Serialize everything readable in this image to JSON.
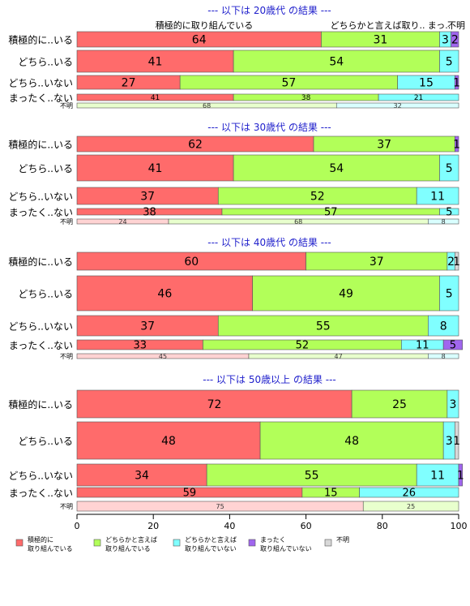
{
  "chart_data": {
    "type": "bar",
    "orientation": "horizontal",
    "stacked": true,
    "xlim": [
      0,
      100
    ],
    "x_ticks": [
      "0",
      "20",
      "40",
      "60",
      "80",
      "100"
    ],
    "grid": false,
    "legend_position": "bottom",
    "legend": [
      {
        "lines": [
          "積極的に",
          "取り組んでいる"
        ],
        "color": "#ff6b6b"
      },
      {
        "lines": [
          "どちらかと言えば",
          "取り組んでいる"
        ],
        "color": "#b2ff59"
      },
      {
        "lines": [
          "どちらかと言えば",
          "取り組んでいない"
        ],
        "color": "#80ffff"
      },
      {
        "lines": [
          "まったく",
          "取り組んでいない"
        ],
        "color": "#a066ee"
      },
      {
        "lines": [
          "不明"
        ],
        "color": "#d8d8d8"
      }
    ],
    "groups": [
      {
        "title": "--- 以下は 20歳代 の結果 ---",
        "header_labels": [
          "積極的に取り組んでいる",
          "どちらかと言えば取り..",
          "まっ..",
          "不明"
        ],
        "rows": [
          {
            "label": "積極的に..いる",
            "values": [
              64,
              31,
              3,
              2,
              0
            ],
            "labels": [
              "64",
              "31",
              "3",
              "2",
              ""
            ]
          },
          {
            "label": "どちら..いる",
            "values": [
              41,
              54,
              5,
              0,
              0
            ],
            "labels": [
              "41",
              "54",
              "5",
              "",
              ""
            ]
          },
          {
            "label": "どちら..いない",
            "values": [
              27,
              57,
              15,
              1,
              0
            ],
            "labels": [
              "27",
              "57",
              "15",
              "1",
              ""
            ]
          },
          {
            "label": "まったく..ない",
            "values": [
              41,
              38,
              21,
              0,
              0
            ],
            "labels": [
              "41",
              "38",
              "21",
              "",
              ""
            ]
          },
          {
            "label": "不明",
            "values": [
              0,
              68,
              32,
              0,
              0
            ],
            "labels": [
              "",
              "68",
              "32",
              "",
              ""
            ]
          }
        ]
      },
      {
        "title": "--- 以下は 30歳代 の結果 ---",
        "header_labels": [],
        "rows": [
          {
            "label": "積極的に..いる",
            "values": [
              62,
              37,
              0,
              1,
              0
            ],
            "labels": [
              "62",
              "37",
              "",
              "1",
              ""
            ]
          },
          {
            "label": "どちら..いる",
            "values": [
              41,
              54,
              5,
              0,
              0
            ],
            "labels": [
              "41",
              "54",
              "5",
              "",
              ""
            ]
          },
          {
            "label": "どちら..いない",
            "values": [
              37,
              52,
              11,
              0,
              0
            ],
            "labels": [
              "37",
              "52",
              "11",
              "",
              ""
            ]
          },
          {
            "label": "まったく..ない",
            "values": [
              38,
              57,
              5,
              0,
              0
            ],
            "labels": [
              "38",
              "57",
              "5",
              "",
              ""
            ]
          },
          {
            "label": "不明",
            "values": [
              24,
              68,
              8,
              0,
              0
            ],
            "labels": [
              "24",
              "68",
              "8",
              "",
              ""
            ]
          }
        ]
      },
      {
        "title": "--- 以下は 40歳代 の結果 ---",
        "header_labels": [],
        "rows": [
          {
            "label": "積極的に..いる",
            "values": [
              60,
              37,
              2,
              0,
              1
            ],
            "labels": [
              "60",
              "37",
              "2",
              "",
              "1"
            ]
          },
          {
            "label": "どちら..いる",
            "values": [
              46,
              49,
              5,
              0,
              0
            ],
            "labels": [
              "46",
              "49",
              "5",
              "",
              ""
            ]
          },
          {
            "label": "どちら..いない",
            "values": [
              37,
              55,
              8,
              0,
              0
            ],
            "labels": [
              "37",
              "55",
              "8",
              "",
              ""
            ]
          },
          {
            "label": "まったく..ない",
            "values": [
              33,
              52,
              11,
              5,
              0
            ],
            "labels": [
              "33",
              "52",
              "11",
              "5",
              ""
            ]
          },
          {
            "label": "不明",
            "values": [
              45,
              47,
              8,
              0,
              0
            ],
            "labels": [
              "45",
              "47",
              "8",
              "",
              ""
            ]
          }
        ]
      },
      {
        "title": "--- 以下は 50歳以上 の結果 ---",
        "header_labels": [],
        "rows": [
          {
            "label": "積極的に..いる",
            "values": [
              72,
              25,
              3,
              0,
              0
            ],
            "labels": [
              "72",
              "25",
              "3",
              "",
              ""
            ]
          },
          {
            "label": "どちら..いる",
            "values": [
              48,
              48,
              3,
              0,
              1
            ],
            "labels": [
              "48",
              "48",
              "3",
              "",
              "1"
            ]
          },
          {
            "label": "どちら..いない",
            "values": [
              34,
              55,
              11,
              1,
              0
            ],
            "labels": [
              "34",
              "55",
              "11",
              "1",
              ""
            ]
          },
          {
            "label": "まったく..ない",
            "values": [
              59,
              15,
              26,
              0,
              0
            ],
            "labels": [
              "59",
              "15",
              "26",
              "",
              ""
            ]
          },
          {
            "label": "不明",
            "values": [
              75,
              25,
              0,
              0,
              0
            ],
            "labels": [
              "75",
              "25",
              "",
              "",
              ""
            ]
          }
        ]
      }
    ]
  }
}
